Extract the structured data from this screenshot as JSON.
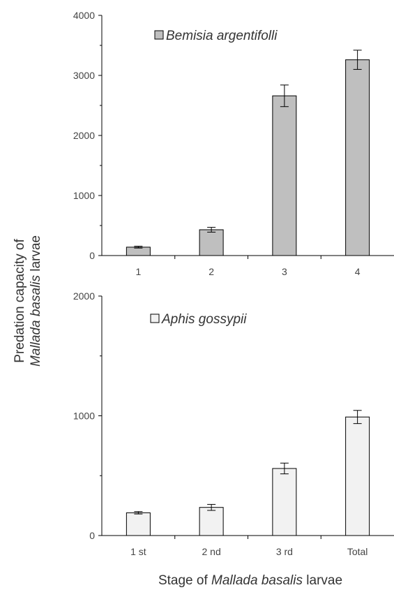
{
  "chart_data": [
    {
      "type": "bar",
      "categories": [
        "1",
        "2",
        "3",
        "4"
      ],
      "series": [
        {
          "name": "Bemisia argentifolli",
          "values": [
            140,
            430,
            2660,
            3260
          ],
          "errors": [
            15,
            40,
            180,
            160
          ],
          "color": "#bfbfbf"
        }
      ],
      "yticks": [
        "0",
        "1000",
        "2000",
        "3000",
        "4000"
      ],
      "ylim": [
        0,
        4000
      ]
    },
    {
      "type": "bar",
      "categories": [
        "1 st",
        "2 nd",
        "3 rd",
        "Total"
      ],
      "series": [
        {
          "name": "Aphis gossypii",
          "values": [
            190,
            235,
            560,
            990
          ],
          "errors": [
            10,
            25,
            45,
            55
          ],
          "color": "#f2f2f2"
        }
      ],
      "yticks": [
        "0",
        "1000",
        "2000"
      ],
      "ylim": [
        0,
        2000
      ]
    }
  ],
  "ylabel": {
    "line1": "Predation capacity of",
    "line2_italic": "Mallada basalis",
    "line2_rest": " larvae"
  },
  "xlabel": {
    "prefix": "Stage of ",
    "italic": "Mallada basalis",
    "suffix": " larvae"
  }
}
